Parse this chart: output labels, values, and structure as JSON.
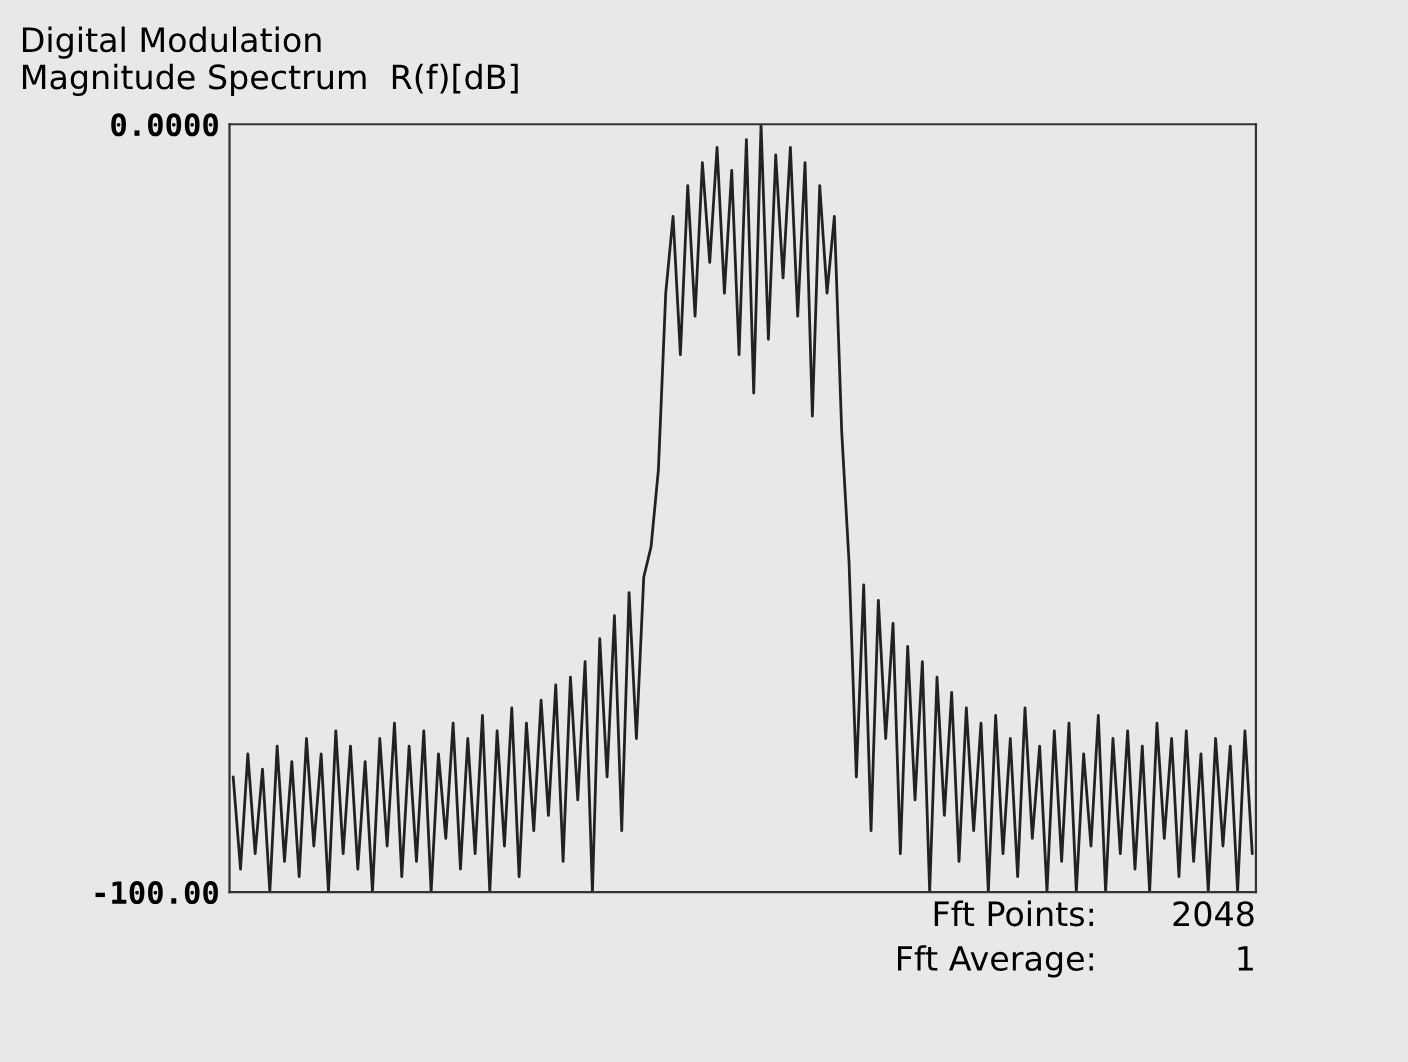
{
  "chart_data": {
    "type": "line",
    "title": "Digital Modulation",
    "subtitle": "Magnitude Spectrum  R(f)[dB]",
    "categories": [
      null,
      null,
      null,
      null,
      null,
      null,
      null,
      null,
      null,
      null,
      null,
      null,
      null,
      null,
      null,
      null,
      null,
      null,
      null,
      null,
      null,
      null,
      null,
      null,
      null,
      null,
      null,
      null,
      null,
      null,
      null,
      null,
      null,
      null,
      null,
      null,
      null,
      null,
      null,
      null,
      null,
      null,
      null,
      null,
      null,
      null,
      null,
      null,
      null,
      null,
      null,
      null,
      null,
      null,
      null,
      null,
      null,
      null,
      null,
      null,
      null,
      null,
      null,
      null,
      null,
      null,
      null,
      null,
      null,
      null,
      null,
      null,
      null,
      null,
      null,
      null,
      null,
      null,
      null,
      null,
      null,
      null,
      null,
      null,
      null,
      null,
      null,
      null,
      null,
      null,
      null,
      null,
      null,
      null,
      null,
      null,
      null,
      null,
      null,
      null,
      null,
      null,
      null,
      null,
      null,
      null,
      null,
      null,
      null,
      null,
      null,
      null,
      null,
      null,
      null,
      null,
      null,
      null,
      null,
      null,
      null,
      null,
      null,
      null,
      null,
      null,
      null,
      null,
      null,
      null,
      null,
      null,
      null,
      null,
      null,
      null,
      null,
      null,
      null,
      null
    ],
    "series": [
      {
        "color": "#222222",
        "values": [
          -85,
          -97,
          -82,
          -95,
          -84,
          -100,
          -81,
          -96,
          -83,
          -98,
          -80,
          -94,
          -82,
          -100,
          -79,
          -95,
          -81,
          -97,
          -83,
          -100,
          -80,
          -94,
          -78,
          -98,
          -81,
          -96,
          -79,
          -100,
          -82,
          -93,
          -78,
          -97,
          -80,
          -95,
          -77,
          -100,
          -79,
          -94,
          -76,
          -98,
          -78,
          -92,
          -75,
          -90,
          -73,
          -96,
          -72,
          -88,
          -70,
          -100,
          -67,
          -85,
          -64,
          -92,
          -61,
          -80,
          -59,
          -55,
          -45,
          -22,
          -12,
          -30,
          -8,
          -25,
          -5,
          -18,
          -3,
          -22,
          -6,
          -30,
          -2,
          -35,
          0,
          -28,
          -4,
          -20,
          -3,
          -25,
          -5,
          -38,
          -8,
          -22,
          -12,
          -40,
          -57,
          -85,
          -60,
          -92,
          -62,
          -80,
          -65,
          -95,
          -68,
          -88,
          -70,
          -100,
          -72,
          -90,
          -74,
          -96,
          -76,
          -92,
          -78,
          -100,
          -77,
          -95,
          -80,
          -98,
          -76,
          -93,
          -81,
          -100,
          -79,
          -96,
          -78,
          -100,
          -82,
          -94,
          -77,
          -100,
          -80,
          -95,
          -79,
          -97,
          -81,
          -100,
          -78,
          -93,
          -80,
          -98,
          -79,
          -96,
          -82,
          -100,
          -80,
          -94,
          -81,
          -100,
          -79,
          -95
        ]
      }
    ],
    "ylim": [
      -100,
      0
    ],
    "yticks": [
      {
        "value": -100,
        "label": "-100.00"
      },
      {
        "value": 0,
        "label": "0.0000"
      }
    ],
    "tick_labels": "y",
    "grid": false,
    "legend": false,
    "line_style": "solid",
    "marker": "none",
    "annotations": [
      "Fft Points:",
      "2048",
      "Fft Average:",
      "1"
    ]
  }
}
